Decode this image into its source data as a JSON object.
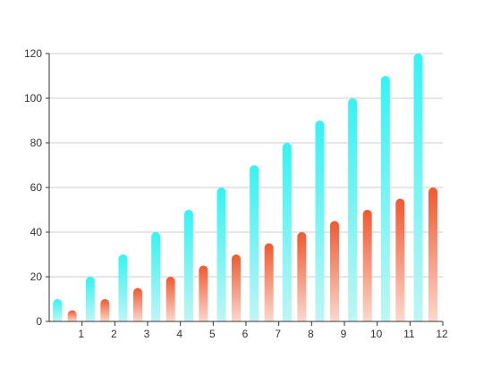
{
  "chart_data": {
    "type": "bar",
    "title": "",
    "xlabel": "",
    "ylabel": "",
    "x_tick_labels": [
      "1",
      "2",
      "3",
      "4",
      "5",
      "6",
      "7",
      "8",
      "9",
      "10",
      "11",
      "12"
    ],
    "ylim": [
      0,
      120
    ],
    "y_ticks": [
      0,
      20,
      40,
      60,
      80,
      100,
      120
    ],
    "grid": true,
    "legend": "none",
    "series": [
      {
        "values": [
          10,
          20,
          30,
          40,
          50,
          60,
          70,
          80,
          90,
          100,
          110,
          120
        ],
        "color_top": "#33f4f4",
        "color_bottom": "#bff5f5"
      },
      {
        "values": [
          5,
          10,
          15,
          20,
          25,
          30,
          35,
          40,
          45,
          50,
          55,
          60
        ],
        "color_top": "#f1582f",
        "color_bottom": "#fcd8cc"
      }
    ],
    "colors": {
      "grid": "#cccccc",
      "axis": "#333333"
    }
  }
}
